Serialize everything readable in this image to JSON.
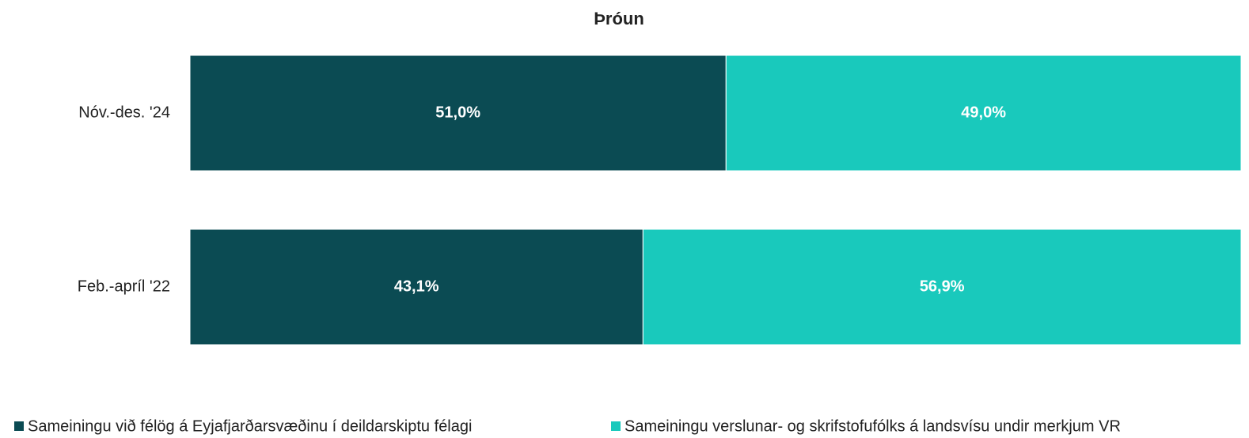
{
  "chart_data": {
    "type": "stacked-barh",
    "title": "Þróun",
    "categories": [
      "Nóv.-des. '24",
      "Feb.-apríl '22"
    ],
    "xlim": [
      0,
      100
    ],
    "legend": "bottom",
    "series": [
      {
        "name": "Sameiningu við félög á Eyjafjarðarsvæðinu í deildarskiptu félagi",
        "color": "#0b4b53",
        "values": [
          51.0,
          43.1
        ],
        "value_labels": [
          "51,0%",
          "43,1%"
        ]
      },
      {
        "name": "Sameiningu verslunar- og skrifstofufólks á landsvísu undir merkjum VR",
        "color": "#19c9bc",
        "values": [
          49.0,
          56.9
        ],
        "value_labels": [
          "49,0%",
          "56,9%"
        ]
      }
    ]
  }
}
